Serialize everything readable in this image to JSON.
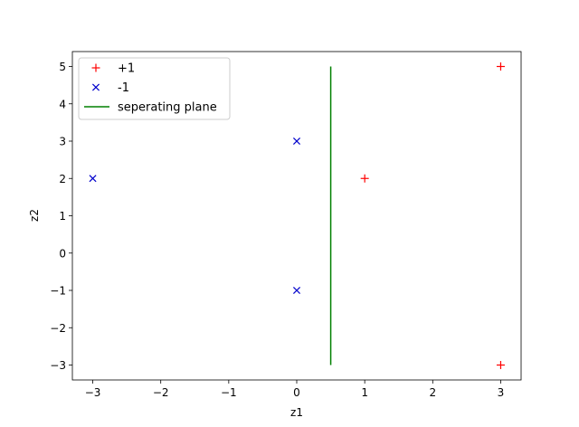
{
  "chart_data": {
    "type": "scatter",
    "xlabel": "z1",
    "ylabel": "z2",
    "xlim": [
      -3.3,
      3.3
    ],
    "ylim": [
      -3.4,
      5.4
    ],
    "xticks": [
      -3,
      -2,
      -1,
      0,
      1,
      2,
      3
    ],
    "yticks": [
      -3,
      -2,
      -1,
      0,
      1,
      2,
      3,
      4,
      5
    ],
    "grid": false,
    "legend_position": "upper-left",
    "series": [
      {
        "name": "+1",
        "kind": "scatter",
        "marker": "plus",
        "color": "#ff0000",
        "points": [
          [
            1,
            2
          ],
          [
            3,
            5
          ],
          [
            3,
            -3
          ]
        ]
      },
      {
        "name": "-1",
        "kind": "scatter",
        "marker": "x",
        "color": "#0000cc",
        "points": [
          [
            -3,
            2
          ],
          [
            0,
            3
          ],
          [
            0,
            -1
          ]
        ]
      },
      {
        "name": "seperating plane",
        "kind": "line",
        "color": "#008000",
        "points": [
          [
            0.5,
            -3
          ],
          [
            0.5,
            5
          ]
        ]
      }
    ]
  }
}
